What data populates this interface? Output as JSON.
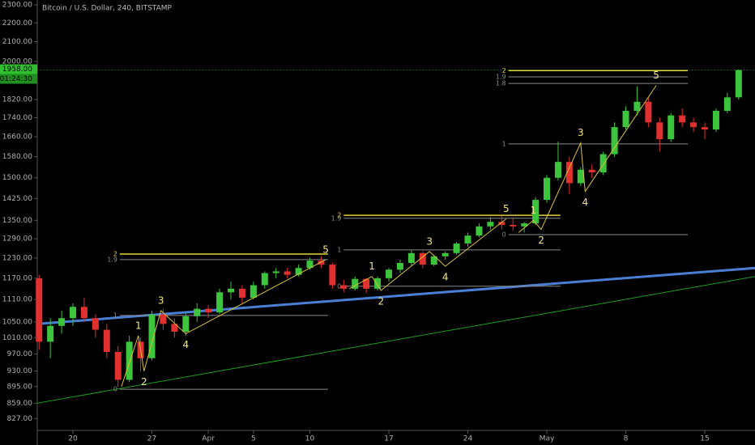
{
  "chart_data": {
    "type": "candlestick",
    "title": "Bitcoin / U.S. Dollar, 240, BITSTAMP",
    "last_price_label": "1958.00",
    "countdown_label": "01:24:30",
    "log_scale": true,
    "up_color": "#3cc43c",
    "down_color": "#e0302f",
    "xlim": [
      -3.16,
      60.45
    ],
    "xticks": [
      {
        "value": 0,
        "label": "20"
      },
      {
        "value": 7,
        "label": "27"
      },
      {
        "value": 12,
        "label": "Apr"
      },
      {
        "value": 16,
        "label": "5"
      },
      {
        "value": 21,
        "label": "10"
      },
      {
        "value": 28,
        "label": "17"
      },
      {
        "value": 35,
        "label": "24"
      },
      {
        "value": 42,
        "label": "May"
      },
      {
        "value": 49,
        "label": "8"
      },
      {
        "value": 56,
        "label": "15"
      }
    ],
    "ylim": [
      803,
      2328
    ],
    "yticks": [
      {
        "value": 827,
        "label": "827.00"
      },
      {
        "value": 859,
        "label": "859.00"
      },
      {
        "value": 895,
        "label": "895.00"
      },
      {
        "value": 930,
        "label": "930.00"
      },
      {
        "value": 970,
        "label": "970.00"
      },
      {
        "value": 1010,
        "label": "1010.00"
      },
      {
        "value": 1050,
        "label": "1050.00"
      },
      {
        "value": 1110,
        "label": "1110.00"
      },
      {
        "value": 1170,
        "label": "1170.00"
      },
      {
        "value": 1230,
        "label": "1230.00"
      },
      {
        "value": 1290,
        "label": "1290.00"
      },
      {
        "value": 1350,
        "label": "1350.00"
      },
      {
        "value": 1425,
        "label": "1425.00"
      },
      {
        "value": 1500,
        "label": "1500.00"
      },
      {
        "value": 1580,
        "label": "1580.00"
      },
      {
        "value": 1660,
        "label": "1660.00"
      },
      {
        "value": 1740,
        "label": "1740.00"
      },
      {
        "value": 1820,
        "label": "1820.00"
      },
      {
        "value": 2000,
        "label": "2000.00"
      },
      {
        "value": 2100,
        "label": "2100.00"
      },
      {
        "value": 2200,
        "label": "2200.00"
      },
      {
        "value": 2300,
        "label": "2300.00"
      }
    ],
    "last_price": 1958,
    "x": [
      -3,
      -2,
      -1,
      0,
      1,
      2,
      3,
      4,
      5,
      6,
      7,
      8,
      9,
      10,
      11,
      12,
      13,
      14,
      15,
      16,
      17,
      18,
      19,
      20,
      21,
      22,
      23,
      24,
      25,
      26,
      27,
      28,
      29,
      30,
      31,
      32,
      33,
      34,
      35,
      36,
      37,
      38,
      39,
      40,
      41,
      42,
      43,
      44,
      45,
      46,
      47,
      48,
      49,
      50,
      51,
      52,
      53,
      54,
      55,
      56,
      57,
      58,
      59
    ],
    "open": [
      1170,
      1000,
      1040,
      1060,
      1090,
      1060,
      1030,
      975,
      910,
      1000,
      960,
      1070,
      1045,
      1025,
      1065,
      1085,
      1075,
      1130,
      1140,
      1115,
      1150,
      1185,
      1190,
      1180,
      1200,
      1222,
      1210,
      1150,
      1140,
      1168,
      1140,
      1170,
      1195,
      1215,
      1245,
      1210,
      1235,
      1245,
      1275,
      1300,
      1330,
      1345,
      1335,
      1330,
      1340,
      1420,
      1500,
      1560,
      1480,
      1530,
      1520,
      1590,
      1700,
      1770,
      1810,
      1720,
      1650,
      1750,
      1720,
      1700,
      1690,
      1770,
      1830
    ],
    "high": [
      1180,
      1060,
      1080,
      1100,
      1115,
      1070,
      1045,
      990,
      1015,
      1010,
      1080,
      1085,
      1060,
      1075,
      1100,
      1095,
      1140,
      1160,
      1150,
      1160,
      1190,
      1200,
      1200,
      1210,
      1230,
      1235,
      1215,
      1165,
      1175,
      1170,
      1175,
      1200,
      1225,
      1255,
      1250,
      1240,
      1250,
      1280,
      1310,
      1340,
      1360,
      1365,
      1360,
      1345,
      1430,
      1510,
      1640,
      1580,
      1540,
      1550,
      1600,
      1720,
      1790,
      1880,
      1830,
      1740,
      1760,
      1780,
      1740,
      1720,
      1780,
      1850,
      1960
    ],
    "low": [
      980,
      960,
      1020,
      1040,
      1050,
      1010,
      960,
      895,
      905,
      930,
      955,
      1030,
      1010,
      1015,
      1050,
      1060,
      1070,
      1110,
      1100,
      1110,
      1140,
      1170,
      1170,
      1175,
      1195,
      1200,
      1140,
      1130,
      1135,
      1128,
      1135,
      1160,
      1185,
      1205,
      1200,
      1205,
      1225,
      1240,
      1265,
      1295,
      1320,
      1320,
      1315,
      1310,
      1335,
      1410,
      1490,
      1440,
      1470,
      1500,
      1510,
      1580,
      1690,
      1750,
      1700,
      1600,
      1640,
      1700,
      1680,
      1650,
      1680,
      1760,
      1820
    ],
    "close": [
      1000,
      1040,
      1060,
      1090,
      1060,
      1030,
      975,
      910,
      1000,
      960,
      1070,
      1045,
      1025,
      1065,
      1085,
      1075,
      1130,
      1140,
      1115,
      1150,
      1185,
      1190,
      1180,
      1200,
      1222,
      1210,
      1150,
      1140,
      1168,
      1140,
      1170,
      1195,
      1215,
      1245,
      1210,
      1235,
      1245,
      1275,
      1300,
      1330,
      1345,
      1335,
      1330,
      1340,
      1420,
      1500,
      1560,
      1480,
      1530,
      1520,
      1590,
      1700,
      1770,
      1810,
      1720,
      1650,
      1750,
      1720,
      1700,
      1690,
      1770,
      1830,
      1958
    ],
    "trendlines": [
      {
        "color": "#4a7fd6",
        "width": 3,
        "points": [
          [
            -3.16,
            1045
          ],
          [
            60.45,
            1200
          ]
        ]
      },
      {
        "color": "#1f9e1f",
        "width": 1,
        "points": [
          [
            -3.16,
            859
          ],
          [
            60.45,
            1175
          ]
        ]
      }
    ],
    "fibs": [
      {
        "x": [
          4.16,
          22.6
        ],
        "levels": [
          {
            "value": 889,
            "label": "0",
            "color": "#8a8a8a"
          },
          {
            "value": 1067,
            "label": "1",
            "color": "#8a8a8a"
          },
          {
            "value": 1225,
            "label": "1.9",
            "color": "#8a8a8a"
          },
          {
            "value": 1242,
            "label": "2",
            "color": "#e6d23c"
          }
        ]
      },
      {
        "x": [
          24.0,
          43.2
        ],
        "levels": [
          {
            "value": 1147,
            "label": "0",
            "color": "#8a8a8a"
          },
          {
            "value": 1255,
            "label": "1",
            "color": "#8a8a8a"
          },
          {
            "value": 1357,
            "label": "1.9",
            "color": "#8a8a8a"
          },
          {
            "value": 1367,
            "label": "2",
            "color": "#e6d23c"
          }
        ]
      },
      {
        "x": [
          38.6,
          54.5
        ],
        "levels": [
          {
            "value": 1303,
            "label": "0",
            "color": "#8a8a8a"
          },
          {
            "value": 1631,
            "label": "1",
            "color": "#8a8a8a"
          },
          {
            "value": 1894,
            "label": "1.8",
            "color": "#8a8a8a"
          },
          {
            "value": 1925,
            "label": "1.9",
            "color": "#8a8a8a"
          },
          {
            "value": 1955,
            "label": "2",
            "color": "#e6d23c"
          }
        ]
      }
    ],
    "waves": [
      {
        "color": "#d8c23a",
        "points": [
          [
            4.3,
            895
          ],
          [
            5.8,
            1015
          ],
          [
            6.3,
            930
          ],
          [
            7.8,
            1080
          ],
          [
            10,
            1020
          ],
          [
            22.4,
            1225
          ]
        ],
        "labels": [
          "1",
          "2",
          "3",
          "4",
          "5"
        ]
      },
      {
        "color": "#d8c23a",
        "points": [
          [
            24.5,
            1140
          ],
          [
            26.5,
            1175
          ],
          [
            27.3,
            1135
          ],
          [
            31.6,
            1250
          ],
          [
            33,
            1205
          ],
          [
            38.4,
            1355
          ]
        ],
        "labels": [
          "1",
          "2",
          "3",
          "4",
          "5"
        ]
      },
      {
        "color": "#d8c23a",
        "points": [
          [
            39.5,
            1310
          ],
          [
            40.8,
            1350
          ],
          [
            41.5,
            1320
          ],
          [
            45,
            1635
          ],
          [
            45.4,
            1450
          ],
          [
            51.7,
            1885
          ]
        ],
        "labels": [
          "1",
          "2",
          "3",
          "4",
          "5"
        ]
      }
    ]
  }
}
